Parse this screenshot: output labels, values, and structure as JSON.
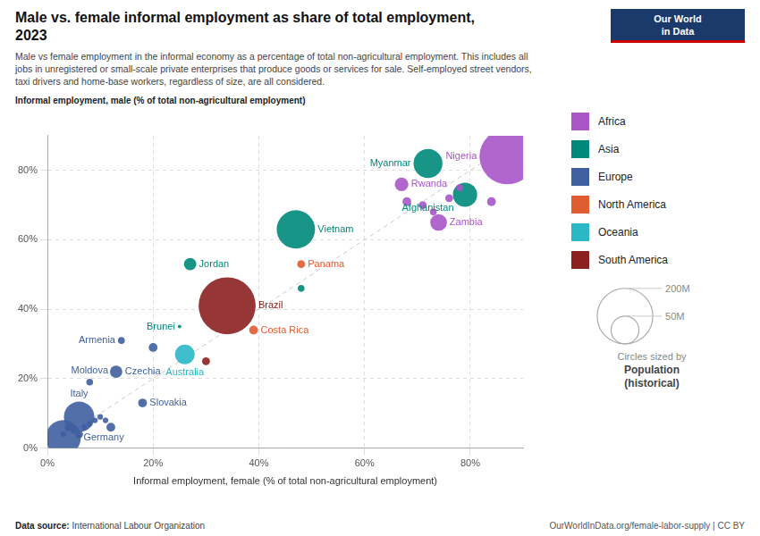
{
  "chart_data": {
    "type": "bubble",
    "title": "Male vs. female informal employment as share of total employment,\n2023",
    "subtitle": "Male vs female employment in the informal economy as a percentage of total non-agricultural employment. This includes all\njobs in unregistered or small-scale private enterprises that produce goods or services for sale. Self-employed street vendors,\ntaxi drivers and home-base workers, regardless of size, are all considered.",
    "x_label": "Informal employment, female (% of total non-agricultural employment)",
    "y_label": "Informal employment, male (% of total non-agricultural employment)",
    "source_label": "Data source:",
    "source": "International Labour Organization",
    "url": "OurWorldInData.org/female-labor-supply | CC BY",
    "logo": "Our World\nin Data",
    "xlim": [
      0,
      90
    ],
    "ylim": [
      0,
      90
    ],
    "xticks": [
      {
        "value": 0,
        "label": "0%"
      },
      {
        "value": 20,
        "label": "20%"
      },
      {
        "value": 40,
        "label": "40%"
      },
      {
        "value": 60,
        "label": "60%"
      },
      {
        "value": 80,
        "label": "80%"
      }
    ],
    "yticks": [
      {
        "value": 0,
        "label": "0%"
      },
      {
        "value": 20,
        "label": "20%"
      },
      {
        "value": 40,
        "label": "40%"
      },
      {
        "value": 60,
        "label": "60%"
      },
      {
        "value": 80,
        "label": "80%"
      }
    ],
    "grid": true,
    "legend": "right",
    "reference_line": {
      "x": [
        0,
        90
      ],
      "y": [
        0,
        90
      ],
      "line_style": "dashed",
      "color": "#cccccc"
    },
    "size_legend": {
      "title": "Circles sized by",
      "name": "Population\n(historical)",
      "values": [
        200,
        50
      ],
      "labels": [
        "200M",
        "50M"
      ]
    },
    "series": [
      {
        "name": "Africa",
        "color": "#a855c8",
        "x": [
          68,
          71,
          73,
          76,
          78,
          84,
          67,
          74,
          87
        ],
        "y": [
          71,
          70,
          68,
          72,
          75,
          71,
          76,
          65,
          84
        ],
        "pop": [
          5,
          4,
          3,
          4,
          3,
          5,
          12,
          18,
          200
        ],
        "labels": [
          null,
          null,
          null,
          null,
          null,
          null,
          "Rwanda",
          "Zambia",
          "Nigeria"
        ]
      },
      {
        "name": "Asia",
        "color": "#00897b",
        "x": [
          48,
          27,
          25,
          47,
          72,
          79
        ],
        "y": [
          46,
          53,
          35,
          63,
          82,
          73
        ],
        "pop": [
          3,
          10,
          0.5,
          95,
          54,
          38
        ],
        "labels": [
          null,
          "Jordan",
          "Brunei",
          "Vietnam",
          "Myanmar",
          "Afghanistan"
        ]
      },
      {
        "name": "Europe",
        "color": "#3f5fa0",
        "x": [
          3,
          5,
          7,
          8,
          9,
          10,
          11,
          4,
          6,
          12,
          20,
          3,
          6,
          18,
          8,
          13,
          14
        ],
        "y": [
          4,
          5,
          6,
          7,
          8,
          9,
          8,
          6,
          4,
          6,
          29,
          3,
          9,
          13,
          19,
          22,
          31
        ],
        "pop": [
          2,
          2,
          2,
          2,
          2,
          2,
          2,
          4,
          4,
          5,
          5,
          80,
          60,
          5,
          3,
          10,
          3
        ],
        "labels": [
          null,
          null,
          null,
          null,
          null,
          null,
          null,
          null,
          null,
          null,
          null,
          "Germany",
          "Italy",
          "Slovakia",
          "Moldova",
          "Czechia",
          "Armenia"
        ]
      },
      {
        "name": "North America",
        "color": "#e05c31",
        "x": [
          48,
          39
        ],
        "y": [
          53,
          34
        ],
        "pop": [
          4,
          5
        ],
        "labels": [
          "Panama",
          "Costa Rica"
        ]
      },
      {
        "name": "Oceania",
        "color": "#2ab8c5",
        "x": [
          26
        ],
        "y": [
          27
        ],
        "pop": [
          25
        ],
        "labels": [
          "Australia"
        ]
      },
      {
        "name": "South America",
        "color": "#8b2020",
        "x": [
          30,
          34
        ],
        "y": [
          25,
          41
        ],
        "pop": [
          4,
          210
        ],
        "labels": [
          null,
          "Brazil"
        ]
      }
    ]
  }
}
